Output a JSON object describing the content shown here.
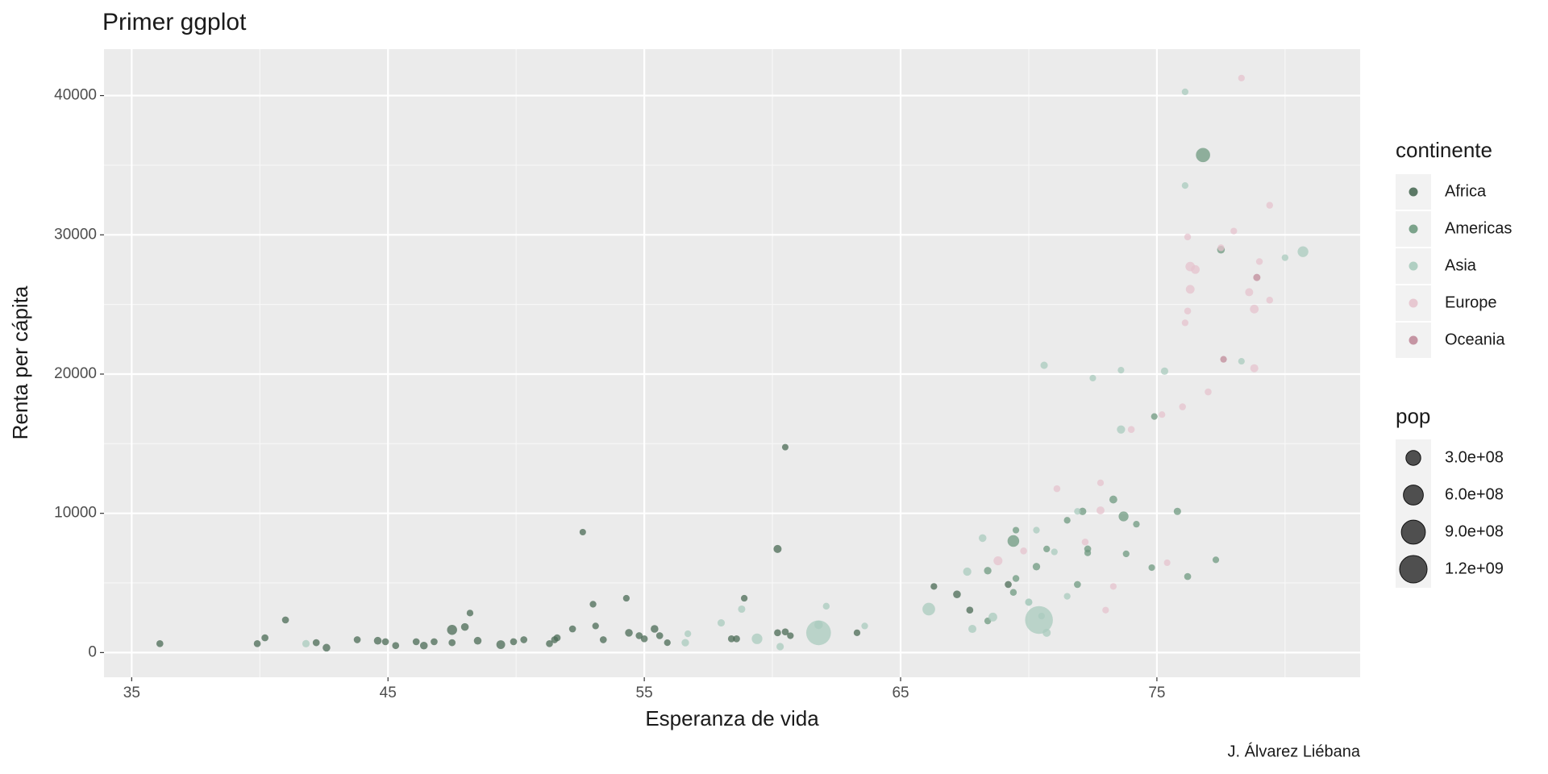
{
  "chart_data": {
    "type": "scatter",
    "title": "Primer ggplot",
    "x_label": "Esperanza de vida",
    "y_label": "Renta per cápita",
    "caption": "J. Álvarez Liébana",
    "xlim": [
      33.92,
      82.93
    ],
    "ylim": [
      -1773,
      43333
    ],
    "xticks": [
      35,
      45,
      55,
      65,
      75
    ],
    "yticks": [
      0,
      10000,
      20000,
      30000,
      40000
    ],
    "grid": true,
    "legend_title": "continente",
    "size_legend": {
      "title": "pop",
      "ticks": [
        {
          "value": 300000000,
          "label": "3.0e+08"
        },
        {
          "value": 600000000,
          "label": "6.0e+08"
        },
        {
          "value": 900000000,
          "label": "9.0e+08"
        },
        {
          "value": 1200000000,
          "label": "1.2e+09"
        }
      ]
    },
    "series": [
      {
        "name": "Africa",
        "color": "#4b6b56",
        "x": [
          36.1,
          39.9,
          40.2,
          41.0,
          42.2,
          42.6,
          43.8,
          44.6,
          44.9,
          45.3,
          46.1,
          46.4,
          46.8,
          47.5,
          47.5,
          48.0,
          48.2,
          48.5,
          49.4,
          49.9,
          50.3,
          51.3,
          51.5,
          51.6,
          52.2,
          52.6,
          53.0,
          53.1,
          53.4,
          54.3,
          54.4,
          54.8,
          55.0,
          55.4,
          55.6,
          55.9,
          58.4,
          58.6,
          58.9,
          60.2,
          60.2,
          60.5,
          60.5,
          60.7,
          63.3,
          66.3,
          67.2,
          67.7,
          69.2
        ],
        "values": [
          640,
          640,
          1060,
          2340,
          710,
          350,
          920,
          850,
          780,
          500,
          780,
          500,
          780,
          1630,
          710,
          1840,
          2840,
          850,
          570,
          780,
          920,
          640,
          920,
          1060,
          1700,
          8650,
          3470,
          1910,
          920,
          3900,
          1420,
          1210,
          990,
          1700,
          1210,
          710,
          990,
          990,
          3900,
          1420,
          7440,
          1490,
          14750,
          1210,
          1420,
          4750,
          4180,
          3050,
          4890
        ],
        "sizes": [
          12000000,
          12000000,
          12000000,
          12000000,
          12000000,
          30000000,
          12000000,
          30000000,
          12000000,
          12000000,
          12000000,
          30000000,
          12000000,
          100000000,
          12000000,
          30000000,
          5000000,
          30000000,
          60000000,
          12000000,
          12000000,
          12000000,
          12000000,
          12000000,
          12000000,
          1000000,
          5000000,
          5000000,
          12000000,
          5000000,
          30000000,
          12000000,
          12000000,
          30000000,
          12000000,
          5000000,
          12000000,
          12000000,
          5000000,
          12000000,
          40000000,
          12000000,
          1000000,
          5000000,
          5000000,
          5000000,
          30000000,
          12000000,
          12000000
        ]
      },
      {
        "name": "Americas",
        "color": "#6f9a80",
        "x": [
          69.4,
          70.3,
          70.7,
          71.5,
          71.9,
          72.1,
          72.3,
          72.3,
          73.3,
          73.7,
          73.8,
          74.2,
          74.8,
          74.9,
          75.8,
          76.2,
          76.8,
          77.3,
          77.5,
          68.4,
          69.4,
          69.5,
          69.5,
          68.4
        ],
        "values": [
          8010,
          6170,
          7440,
          9500,
          4890,
          10140,
          7440,
          7160,
          10990,
          9780,
          7090,
          9220,
          6100,
          16950,
          10140,
          5460,
          35730,
          6660,
          28930,
          5880,
          4320,
          5320,
          8790,
          2270
        ],
        "sizes": [
          160000000,
          25000000,
          5000000,
          5000000,
          12000000,
          25000000,
          12000000,
          5000000,
          36000000,
          95000000,
          5000000,
          5000000,
          3000000,
          3000000,
          20000000,
          12000000,
          270000000,
          3000000,
          30000000,
          25000000,
          8000000,
          8000000,
          3000000,
          8000000
        ]
      },
      {
        "name": "Asia",
        "color": "#a9cbbd",
        "x": [
          41.8,
          56.6,
          56.7,
          58.0,
          58.8,
          59.4,
          60.3,
          61.8,
          61.8,
          62.1,
          63.6,
          66.1,
          67.6,
          67.8,
          68.2,
          68.6,
          70.0,
          70.0,
          70.3,
          70.4,
          70.5,
          70.7,
          70.6,
          71.0,
          71.5,
          71.9,
          72.5,
          73.6,
          73.6,
          75.3,
          76.1,
          76.1,
          78.3,
          80.0,
          80.7
        ],
        "values": [
          640,
          710,
          1350,
          2130,
          3120,
          990,
          430,
          1420,
          1990,
          3330,
          1910,
          3120,
          5810,
          1700,
          8220,
          2550,
          3620,
          3620,
          8790,
          2340,
          2620,
          1420,
          20630,
          7230,
          4040,
          10140,
          19710,
          20280,
          16020,
          20210,
          40270,
          33540,
          20920,
          28360,
          28790
        ],
        "sizes": [
          22000000,
          25000000,
          5000000,
          20000000,
          20000000,
          120000000,
          22000000,
          960000000,
          50000000,
          8000000,
          5000000,
          200000000,
          45000000,
          40000000,
          30000000,
          60000000,
          18000000,
          18000000,
          5000000,
          1230000000,
          5000000,
          40000000,
          20000000,
          5000000,
          5000000,
          5000000,
          2000000,
          3000000,
          45000000,
          22000000,
          5000000,
          5000000,
          3000000,
          5000000,
          125000000
        ]
      },
      {
        "name": "Europe",
        "color": "#e6c3cd",
        "x": [
          68.8,
          69.8,
          71.1,
          72.2,
          72.8,
          72.8,
          73.0,
          73.3,
          74.0,
          75.2,
          75.4,
          76.0,
          76.1,
          76.2,
          76.2,
          76.3,
          76.3,
          76.5,
          77.0,
          77.5,
          78.0,
          78.3,
          78.6,
          78.8,
          78.8,
          79.0,
          79.4,
          79.4
        ],
        "values": [
          6590,
          7300,
          11770,
          7940,
          12190,
          10210,
          3050,
          4750,
          16020,
          17090,
          6450,
          17650,
          23680,
          29850,
          24530,
          26090,
          27720,
          27510,
          18720,
          29070,
          30270,
          41260,
          25880,
          24670,
          20420,
          28080,
          32120,
          25310
        ],
        "sizes": [
          64000000,
          10000000,
          10000000,
          10000000,
          5000000,
          38000000,
          4000000,
          4000000,
          10000000,
          2000000,
          2000000,
          10000000,
          5000000,
          8000000,
          10000000,
          59000000,
          82000000,
          58000000,
          10000000,
          8000000,
          5000000,
          4000000,
          40000000,
          57000000,
          40000000,
          7000000,
          8000000,
          9000000
        ]
      },
      {
        "name": "Oceania",
        "color": "#c08b9a",
        "x": [
          77.6,
          78.9
        ],
        "values": [
          21060,
          26940
        ],
        "sizes": [
          4000000,
          18000000
        ]
      }
    ]
  }
}
